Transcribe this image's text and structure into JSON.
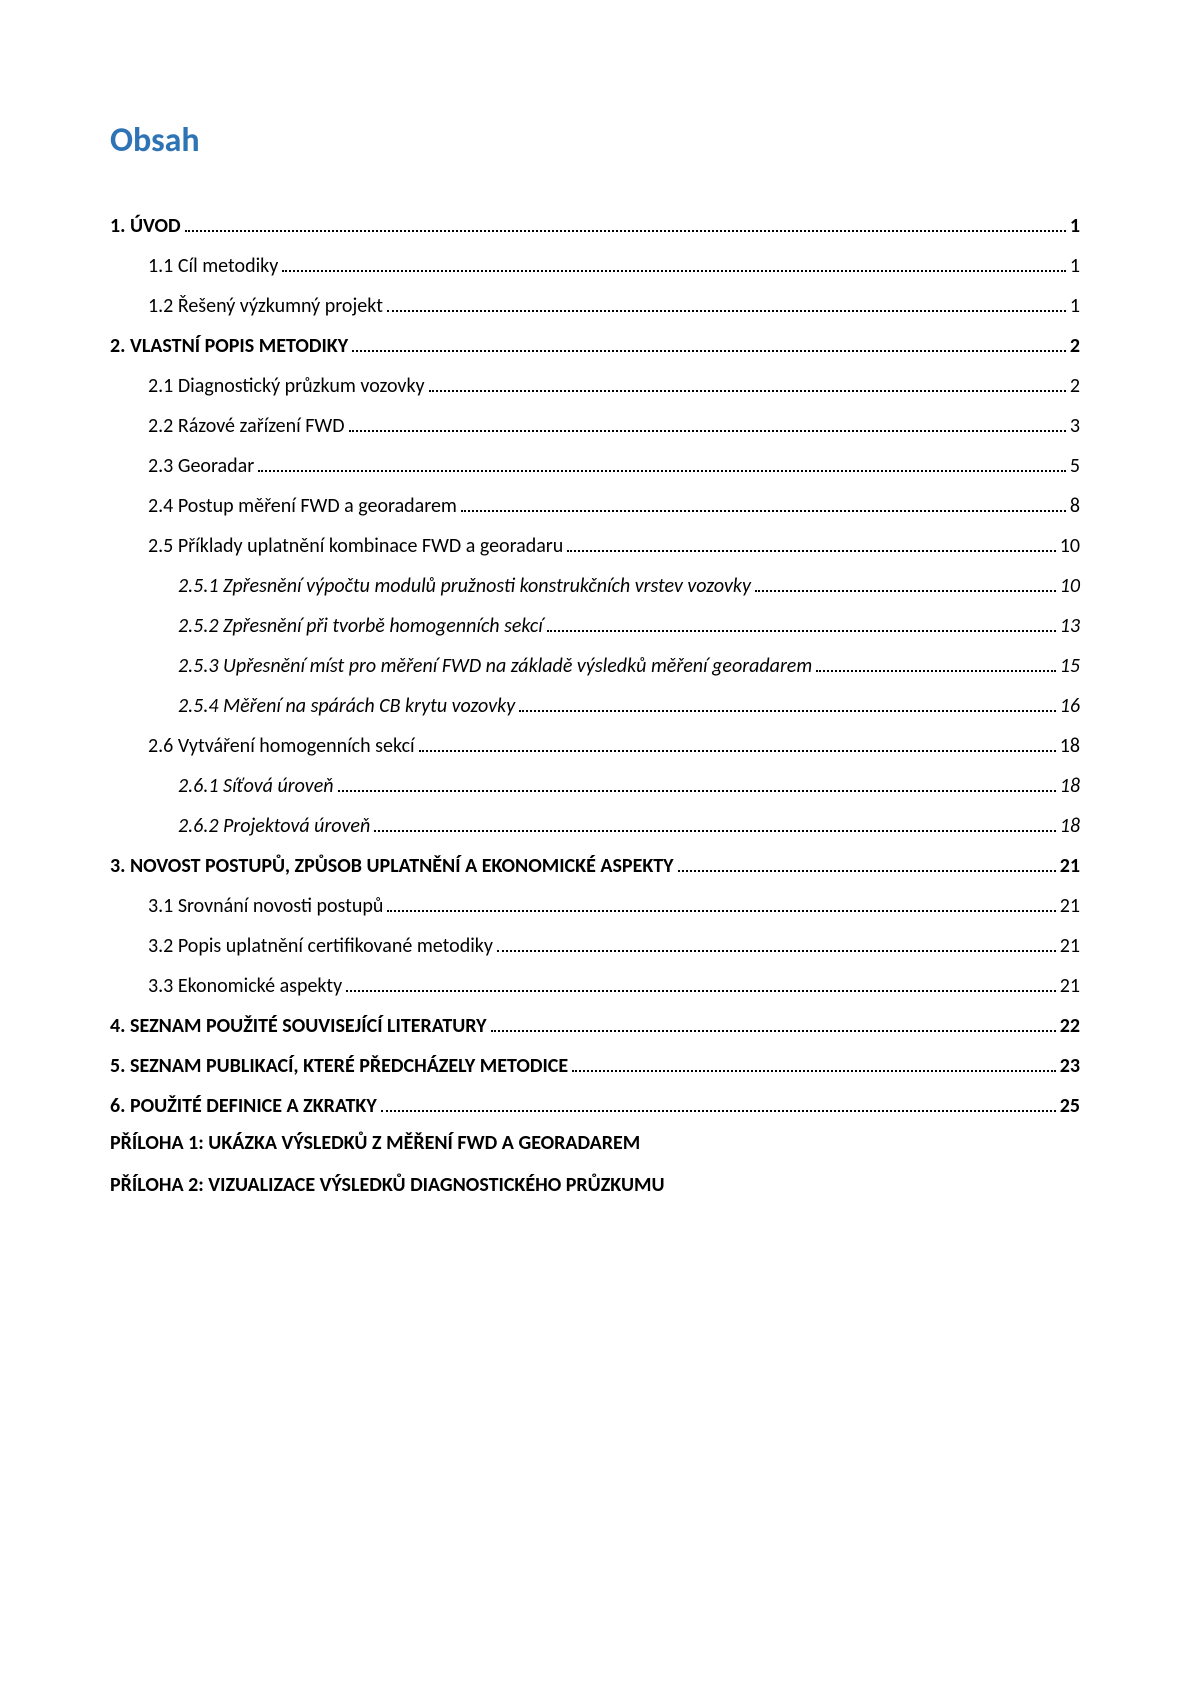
{
  "title": "Obsah",
  "title_color": "#2E74B5",
  "background_color": "#ffffff",
  "text_color": "#000000",
  "font_family": "Calibri",
  "title_fontsize": 34,
  "body_fontsize": 20,
  "entries": [
    {
      "label": "1. ÚVOD",
      "page": "1",
      "level": 1,
      "bold": true,
      "italic": false
    },
    {
      "label": "1.1 Cíl metodiky",
      "page": "1",
      "level": 2,
      "bold": false,
      "italic": false
    },
    {
      "label": "1.2 Řešený výzkumný projekt",
      "page": "1",
      "level": 2,
      "bold": false,
      "italic": false
    },
    {
      "label": "2. VLASTNÍ POPIS METODIKY",
      "page": "2",
      "level": 1,
      "bold": true,
      "italic": false
    },
    {
      "label": "2.1 Diagnostický průzkum vozovky",
      "page": "2",
      "level": 2,
      "bold": false,
      "italic": false
    },
    {
      "label": "2.2 Rázové zařízení FWD",
      "page": "3",
      "level": 2,
      "bold": false,
      "italic": false
    },
    {
      "label": "2.3 Georadar",
      "page": "5",
      "level": 2,
      "bold": false,
      "italic": false
    },
    {
      "label": "2.4 Postup měření FWD a georadarem",
      "page": "8",
      "level": 2,
      "bold": false,
      "italic": false
    },
    {
      "label": "2.5 Příklady uplatnění kombinace FWD a georadaru",
      "page": "10",
      "level": 2,
      "bold": false,
      "italic": false
    },
    {
      "label": "2.5.1 Zpřesnění výpočtu modulů pružnosti konstrukčních vrstev vozovky",
      "page": "10",
      "level": 3,
      "bold": false,
      "italic": true
    },
    {
      "label": "2.5.2 Zpřesnění při tvorbě homogenních sekcí",
      "page": "13",
      "level": 3,
      "bold": false,
      "italic": true
    },
    {
      "label": "2.5.3 Upřesnění míst pro měření FWD na základě výsledků měření georadarem",
      "page": "15",
      "level": 3,
      "bold": false,
      "italic": true
    },
    {
      "label": "2.5.4 Měření na spárách CB krytu vozovky",
      "page": "16",
      "level": 3,
      "bold": false,
      "italic": true
    },
    {
      "label": "2.6 Vytváření homogenních sekcí",
      "page": "18",
      "level": 2,
      "bold": false,
      "italic": false
    },
    {
      "label": "2.6.1 Síťová úroveň",
      "page": "18",
      "level": 3,
      "bold": false,
      "italic": true
    },
    {
      "label": "2.6.2 Projektová úroveň",
      "page": "18",
      "level": 3,
      "bold": false,
      "italic": true
    },
    {
      "label": "3. NOVOST POSTUPŮ, ZPŮSOB UPLATNĚNÍ A EKONOMICKÉ ASPEKTY",
      "page": "21",
      "level": 1,
      "bold": true,
      "italic": false
    },
    {
      "label": "3.1 Srovnání novosti postupů",
      "page": "21",
      "level": 2,
      "bold": false,
      "italic": false
    },
    {
      "label": "3.2 Popis uplatnění certifikované metodiky",
      "page": "21",
      "level": 2,
      "bold": false,
      "italic": false
    },
    {
      "label": "3.3 Ekonomické aspekty",
      "page": "21",
      "level": 2,
      "bold": false,
      "italic": false
    },
    {
      "label": "4. SEZNAM POUŽITÉ SOUVISEJÍCÍ LITERATURY",
      "page": "22",
      "level": 1,
      "bold": true,
      "italic": false
    },
    {
      "label": "5. SEZNAM PUBLIKACÍ, KTERÉ PŘEDCHÁZELY METODICE",
      "page": "23",
      "level": 1,
      "bold": true,
      "italic": false
    },
    {
      "label": "6. POUŽITÉ DEFINICE A ZKRATKY",
      "page": "25",
      "level": 1,
      "bold": true,
      "italic": false
    }
  ],
  "appendices": [
    "PŘÍLOHA 1: UKÁZKA VÝSLEDKŮ Z MĚŘENÍ FWD A GEORADAREM",
    "PŘÍLOHA 2: VIZUALIZACE VÝSLEDKŮ DIAGNOSTICKÉHO PRŮZKUMU"
  ]
}
